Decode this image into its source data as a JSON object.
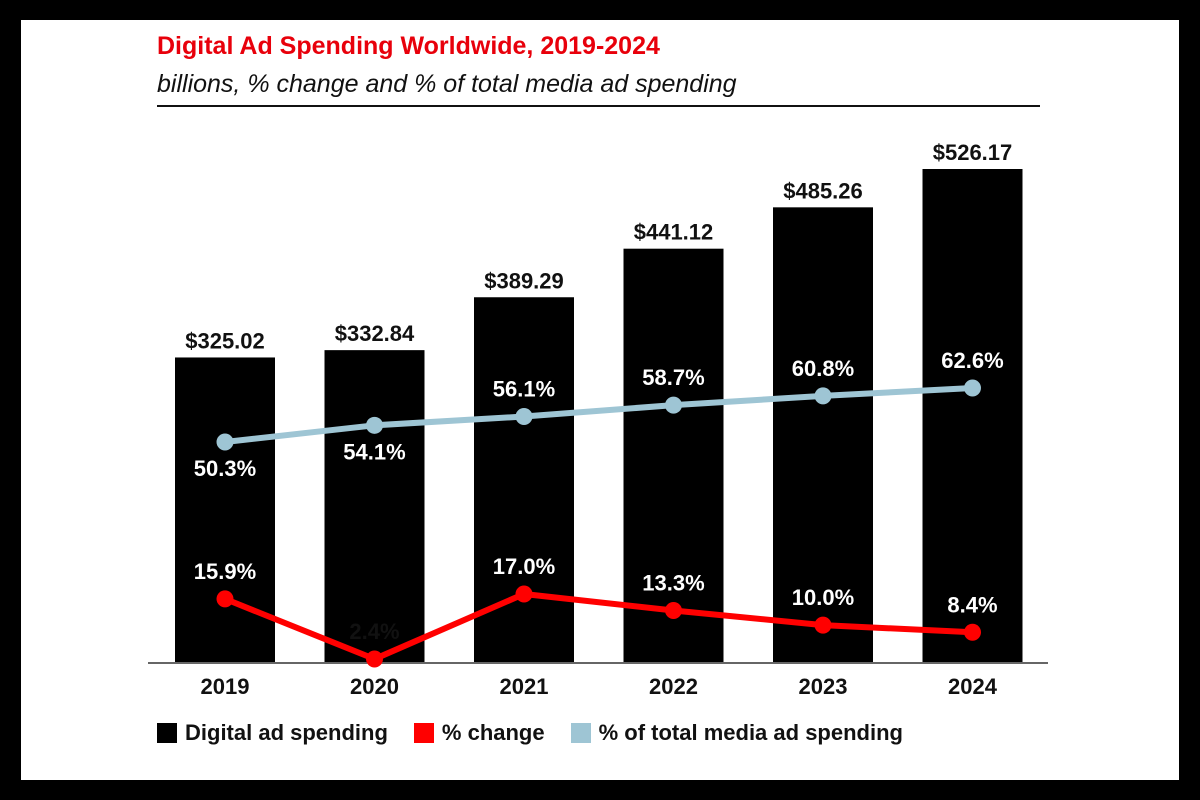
{
  "chart_data": {
    "type": "bar",
    "title": "Digital Ad Spending Worldwide, 2019-2024",
    "subtitle": "billions, % change and % of total media ad spending",
    "categories": [
      "2019",
      "2020",
      "2021",
      "2022",
      "2023",
      "2024"
    ],
    "series": [
      {
        "name": "Digital ad spending",
        "type": "bar",
        "values": [
          325.02,
          332.84,
          389.29,
          441.12,
          485.26,
          526.17
        ],
        "labels": [
          "$325.02",
          "$332.84",
          "$389.29",
          "$441.12",
          "$485.26",
          "$526.17"
        ],
        "color": "#000000"
      },
      {
        "name": "% change",
        "type": "line",
        "values": [
          15.9,
          2.4,
          17.0,
          13.3,
          10.0,
          8.4
        ],
        "labels": [
          "15.9%",
          "2.4%",
          "17.0%",
          "13.3%",
          "10.0%",
          "8.4%"
        ],
        "color": "#ff0000"
      },
      {
        "name": "% of total media ad spending",
        "type": "line",
        "values": [
          50.3,
          54.1,
          56.1,
          58.7,
          60.8,
          62.6
        ],
        "labels": [
          "50.3%",
          "54.1%",
          "56.1%",
          "58.7%",
          "60.8%",
          "62.6%"
        ],
        "color": "#9ec5d4"
      }
    ],
    "legend_position": "bottom",
    "grid": false
  }
}
